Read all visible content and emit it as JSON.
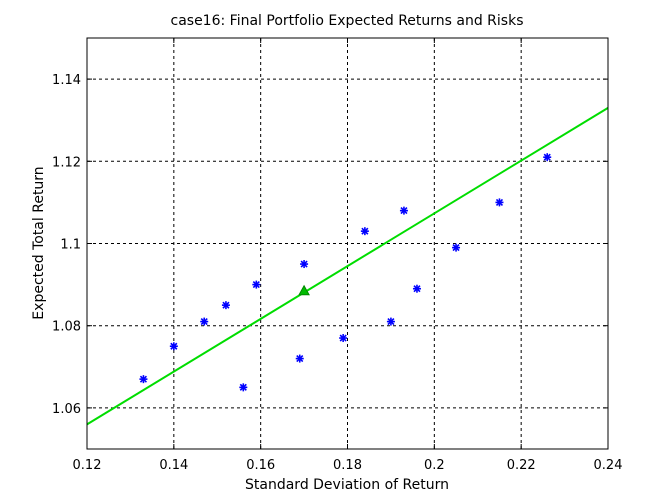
{
  "chart_data": {
    "type": "scatter",
    "title": "case16: Final Portfolio Expected Returns and Risks",
    "xlabel": "Standard Deviation of Return",
    "ylabel": "Expected Total Return",
    "xlim": [
      0.12,
      0.24
    ],
    "ylim": [
      1.05,
      1.15
    ],
    "xticks": [
      0.12,
      0.14,
      0.16,
      0.18,
      0.2,
      0.22,
      0.24
    ],
    "xtick_labels": [
      "0.12",
      "0.14",
      "0.16",
      "0.18",
      "0.2",
      "0.22",
      "0.24"
    ],
    "yticks": [
      1.06,
      1.08,
      1.1,
      1.12,
      1.14
    ],
    "ytick_labels": [
      "1.06",
      "1.08",
      "1.1",
      "1.12",
      "1.14"
    ],
    "grid": true,
    "grid_style": "dotted",
    "series": [
      {
        "marker": "asterisk",
        "color": "#0000ff",
        "points": [
          {
            "x": 0.133,
            "y": 1.067
          },
          {
            "x": 0.14,
            "y": 1.075
          },
          {
            "x": 0.147,
            "y": 1.081
          },
          {
            "x": 0.152,
            "y": 1.085
          },
          {
            "x": 0.156,
            "y": 1.065
          },
          {
            "x": 0.159,
            "y": 1.09
          },
          {
            "x": 0.169,
            "y": 1.072
          },
          {
            "x": 0.17,
            "y": 1.095
          },
          {
            "x": 0.179,
            "y": 1.077
          },
          {
            "x": 0.184,
            "y": 1.103
          },
          {
            "x": 0.19,
            "y": 1.081
          },
          {
            "x": 0.193,
            "y": 1.108
          },
          {
            "x": 0.196,
            "y": 1.089
          },
          {
            "x": 0.205,
            "y": 1.099
          },
          {
            "x": 0.215,
            "y": 1.11
          },
          {
            "x": 0.226,
            "y": 1.121
          }
        ]
      },
      {
        "marker": "triangle",
        "color": "#00bb00",
        "points": [
          {
            "x": 0.17,
            "y": 1.0885
          }
        ]
      },
      {
        "type": "line",
        "color": "#00dd00",
        "points": [
          {
            "x": 0.12,
            "y": 1.056
          },
          {
            "x": 0.24,
            "y": 1.133
          }
        ]
      }
    ]
  }
}
